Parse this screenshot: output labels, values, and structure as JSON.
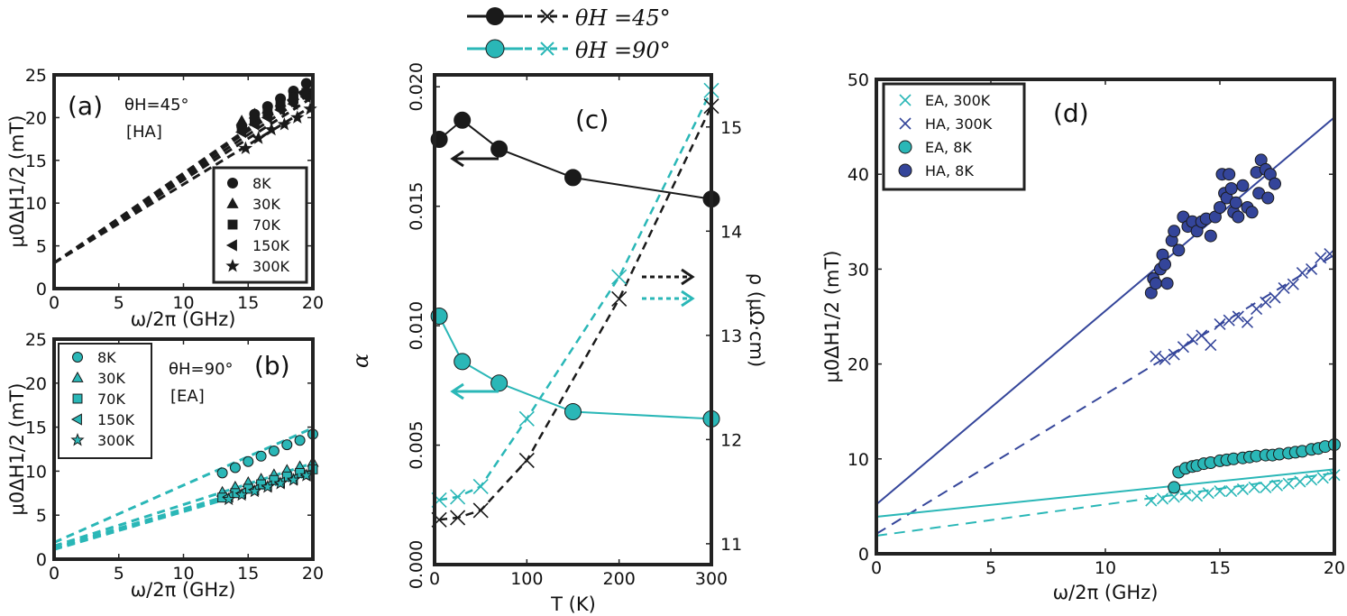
{
  "colors": {
    "black": "#1a1a1a",
    "cyan": "#2ab7b7",
    "navy": "#34459a",
    "frame": "#222222"
  },
  "top_legend": {
    "entry_45": "θ_H = 45°",
    "entry_90": "θ_H = 90°",
    "entry_45_label": "θH =45°",
    "entry_90_label": "θH =90°"
  },
  "chart_data": [
    {
      "id": "a",
      "type": "scatter",
      "panel_label": "(a)",
      "annotation_angle": "θH=45°",
      "annotation_axis": "[HA]",
      "xlabel": "ω/2π (GHz)",
      "ylabel": "μ0ΔH1/2 (mT)",
      "xlim": [
        0,
        20
      ],
      "ylim": [
        0,
        25
      ],
      "xticks": [
        0,
        5,
        10,
        15,
        20
      ],
      "yticks": [
        0,
        5,
        10,
        15,
        20,
        25
      ],
      "legend": [
        "8K",
        "30K",
        "70K",
        "150K",
        "300K"
      ],
      "series": [
        {
          "name": "8K",
          "marker": "circle",
          "fit": [
            3.0,
            1.05
          ],
          "x": [
            14.5,
            15.5,
            16.5,
            17.5,
            18.5,
            19.5
          ],
          "y": [
            19.0,
            20.4,
            21.3,
            22.2,
            23.1,
            24.0
          ]
        },
        {
          "name": "30K",
          "marker": "triangle",
          "fit": [
            3.0,
            1.03
          ],
          "x": [
            14.5,
            15.5,
            16.5,
            17.5,
            18.5,
            19.5
          ],
          "y": [
            19.6,
            20.4,
            21.0,
            21.8,
            22.6,
            23.3
          ]
        },
        {
          "name": "70K",
          "marker": "square",
          "fit": [
            3.0,
            1.0
          ],
          "x": [
            14.5,
            15.5,
            16.5,
            17.5,
            18.5,
            19.5
          ],
          "y": [
            18.8,
            19.6,
            20.6,
            21.4,
            22.2,
            22.9
          ]
        },
        {
          "name": "150K",
          "marker": "triangle-left",
          "fit": [
            3.0,
            0.97
          ],
          "x": [
            14.5,
            15.5,
            16.5,
            17.5,
            18.5,
            19.5
          ],
          "y": [
            18.3,
            19.2,
            20.0,
            20.9,
            21.6,
            22.4
          ]
        },
        {
          "name": "300K",
          "marker": "star",
          "fit": [
            3.0,
            0.92
          ],
          "x": [
            14.8,
            15.8,
            16.8,
            17.8,
            18.8,
            19.8
          ],
          "y": [
            16.4,
            17.6,
            18.6,
            19.2,
            20.0,
            21.0
          ]
        }
      ]
    },
    {
      "id": "b",
      "type": "scatter",
      "panel_label": "(b)",
      "annotation_angle": "θH=90°",
      "annotation_axis": "[EA]",
      "xlabel": "ω/2π (GHz)",
      "ylabel": "μ0ΔH1/2 (mT)",
      "xlim": [
        0,
        20
      ],
      "ylim": [
        0,
        25
      ],
      "xticks": [
        0,
        5,
        10,
        15,
        20
      ],
      "yticks": [
        0,
        5,
        10,
        15,
        20,
        25
      ],
      "legend": [
        "8K",
        "30K",
        "70K",
        "150K",
        "300K"
      ],
      "series": [
        {
          "name": "8K",
          "marker": "circle",
          "fit": [
            1.9,
            0.65
          ],
          "x": [
            13,
            14,
            15,
            16,
            17,
            18,
            19,
            20
          ],
          "y": [
            9.8,
            10.4,
            11.1,
            11.7,
            12.3,
            13.0,
            13.5,
            14.2
          ]
        },
        {
          "name": "30K",
          "marker": "triangle",
          "fit": [
            1.5,
            0.47
          ],
          "x": [
            13,
            14,
            15,
            16,
            17,
            18,
            19,
            20
          ],
          "y": [
            7.6,
            8.2,
            8.7,
            9.1,
            9.6,
            10.1,
            10.5,
            11.0
          ]
        },
        {
          "name": "70K",
          "marker": "square",
          "fit": [
            1.3,
            0.44
          ],
          "x": [
            13,
            14,
            15,
            16,
            17,
            18,
            19,
            20
          ],
          "y": [
            7.0,
            7.5,
            8.0,
            8.5,
            9.0,
            9.4,
            9.8,
            10.2
          ]
        },
        {
          "name": "150K",
          "marker": "triangle-left",
          "fit": [
            1.2,
            0.43
          ],
          "x": [
            13.5,
            14.5,
            15.5,
            16.5,
            17.5,
            18.5,
            19.5
          ],
          "y": [
            7.1,
            7.5,
            7.9,
            8.3,
            8.7,
            9.1,
            9.5
          ]
        },
        {
          "name": "300K",
          "marker": "star",
          "fit": [
            1.1,
            0.43
          ],
          "x": [
            13.5,
            14.5,
            15.5,
            16.5,
            17.5,
            18.5,
            19.5
          ],
          "y": [
            6.8,
            7.3,
            7.7,
            8.2,
            8.6,
            9.0,
            9.5
          ]
        }
      ]
    },
    {
      "id": "c",
      "type": "line",
      "panel_label": "(c)",
      "xlabel": "T (K)",
      "ylabel": "α",
      "ylabel_right": "ρ (μΩ·cm)",
      "xlim": [
        0,
        300
      ],
      "ylim": [
        0,
        0.0205
      ],
      "ylim_right": [
        10.8,
        15.5
      ],
      "xticks": [
        0,
        100,
        200,
        300
      ],
      "yticks": [
        0.0,
        0.005,
        0.01,
        0.015,
        0.02
      ],
      "ytick_labels": [
        "0.000",
        "0.005",
        "0.010",
        "0.015",
        "0.020"
      ],
      "yticks_right": [
        11,
        12,
        13,
        14,
        15
      ],
      "series": [
        {
          "name": "α, θH=45°",
          "axis": "left",
          "x": [
            5,
            30,
            70,
            150,
            300
          ],
          "y": [
            0.0178,
            0.0186,
            0.0174,
            0.0162,
            0.0153
          ]
        },
        {
          "name": "α, θH=90°",
          "axis": "left",
          "x": [
            5,
            30,
            70,
            150,
            300
          ],
          "y": [
            0.0104,
            0.0085,
            0.0076,
            0.0064,
            0.0061
          ]
        },
        {
          "name": "ρ, θH=45°",
          "axis": "right",
          "x": [
            5,
            25,
            50,
            100,
            200,
            300
          ],
          "y": [
            11.23,
            11.25,
            11.32,
            11.8,
            13.35,
            15.2
          ]
        },
        {
          "name": "ρ, θH=90°",
          "axis": "right",
          "x": [
            5,
            25,
            50,
            100,
            200,
            300
          ],
          "y": [
            11.42,
            11.45,
            11.55,
            12.2,
            13.56,
            15.35
          ]
        }
      ]
    },
    {
      "id": "d",
      "type": "scatter",
      "panel_label": "(d)",
      "xlabel": "ω/2π (GHz)",
      "ylabel": "μ0ΔH1/2 (mT)",
      "xlim": [
        0,
        20
      ],
      "ylim": [
        0,
        50
      ],
      "xticks": [
        0,
        5,
        10,
        15,
        20
      ],
      "yticks": [
        0,
        10,
        20,
        30,
        40,
        50
      ],
      "legend": [
        "EA, 300K",
        "HA, 300K",
        "EA, 8K",
        "HA, 8K"
      ],
      "series": [
        {
          "name": "EA, 300K",
          "marker": "x",
          "fit": [
            1.9,
            0.33
          ],
          "x": [
            12.0,
            12.5,
            13.0,
            13.5,
            14.0,
            14.5,
            15.0,
            15.5,
            16.0,
            16.5,
            17.0,
            17.5,
            18.0,
            18.5,
            19.0,
            19.5,
            20.0
          ],
          "y": [
            5.6,
            5.8,
            6.0,
            6.2,
            6.1,
            6.4,
            6.6,
            6.6,
            6.8,
            7.0,
            7.0,
            7.2,
            7.4,
            7.6,
            7.8,
            8.0,
            8.3
          ]
        },
        {
          "name": "HA, 300K",
          "marker": "x",
          "fit": [
            2.1,
            1.47
          ],
          "x": [
            12.2,
            12.6,
            13.0,
            13.4,
            13.8,
            14.2,
            14.6,
            15.0,
            15.4,
            15.8,
            16.2,
            16.6,
            17.0,
            17.4,
            17.8,
            18.2,
            18.6,
            19.0,
            19.4,
            19.8
          ],
          "y": [
            20.8,
            20.5,
            21.0,
            21.8,
            22.6,
            23.0,
            22.0,
            24.2,
            24.6,
            25.0,
            24.4,
            25.8,
            26.5,
            27.0,
            28.0,
            28.4,
            29.6,
            30.0,
            31.2,
            31.6
          ]
        },
        {
          "name": "EA, 8K",
          "marker": "circle",
          "fit": [
            3.9,
            0.25
          ],
          "x": [
            13.0,
            13.2,
            13.5,
            13.8,
            14.0,
            14.3,
            14.6,
            15.0,
            15.3,
            15.6,
            16.0,
            16.3,
            16.6,
            17.0,
            17.3,
            17.6,
            18.0,
            18.3,
            18.6,
            19.0,
            19.3,
            19.6,
            20.0
          ],
          "y": [
            7.0,
            8.6,
            9.0,
            9.2,
            9.3,
            9.5,
            9.6,
            9.8,
            9.9,
            10.0,
            10.1,
            10.2,
            10.3,
            10.4,
            10.4,
            10.5,
            10.6,
            10.7,
            10.8,
            11.0,
            11.1,
            11.3,
            11.5
          ]
        },
        {
          "name": "HA, 8K",
          "marker": "circle",
          "fit": [
            5.2,
            2.04
          ],
          "x": [
            12.0,
            12.1,
            12.2,
            12.4,
            12.5,
            12.6,
            12.7,
            12.9,
            13.0,
            13.2,
            13.4,
            13.6,
            13.8,
            14.0,
            14.2,
            14.4,
            14.6,
            14.8,
            15.0,
            15.1,
            15.2,
            15.3,
            15.4,
            15.5,
            15.6,
            15.7,
            15.8,
            16.0,
            16.2,
            16.4,
            16.6,
            16.7,
            16.8,
            17.0,
            17.1,
            17.2,
            17.4
          ],
          "y": [
            27.5,
            29.0,
            28.5,
            30.0,
            31.5,
            30.5,
            28.5,
            33.0,
            34.0,
            32.0,
            35.5,
            34.5,
            35.0,
            34.0,
            35.0,
            35.3,
            33.5,
            35.5,
            36.5,
            40.0,
            38.0,
            37.5,
            40.0,
            38.5,
            36.0,
            37.0,
            35.5,
            38.8,
            36.5,
            36.0,
            40.2,
            38.0,
            41.5,
            40.5,
            37.5,
            40.0,
            39.0
          ]
        }
      ]
    }
  ]
}
